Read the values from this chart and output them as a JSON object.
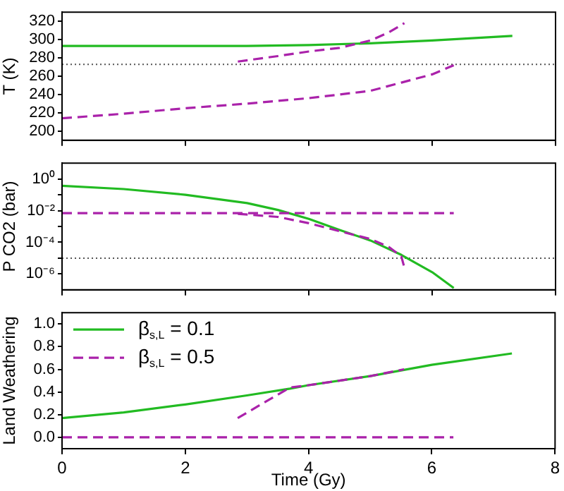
{
  "chart_data": [
    {
      "type": "line",
      "ylabel": "T (K)",
      "xlim": [
        0,
        8
      ],
      "xticks": [
        0,
        2,
        4,
        6,
        8
      ],
      "ylim": [
        190,
        330
      ],
      "yticks": [
        200,
        220,
        240,
        260,
        280,
        300,
        320
      ],
      "tick_labels": "y",
      "line_style": "dashed",
      "ref_lines": [
        {
          "axis": "y",
          "value": 273,
          "color": "#555555",
          "line_style": "dotted"
        }
      ],
      "series": [
        {
          "color": "#22bb22",
          "line_style": "solid",
          "x": [
            0,
            1,
            2,
            3,
            4,
            5,
            6,
            7.3
          ],
          "values": [
            293,
            293,
            293,
            293,
            294,
            296,
            299,
            304
          ]
        },
        {
          "color": "#aa22aa",
          "x": [
            0,
            1,
            2,
            3,
            4,
            5,
            5.5,
            6,
            6.35
          ],
          "values": [
            214,
            219,
            225,
            230,
            236,
            244,
            253,
            262,
            272
          ]
        },
        {
          "color": "#aa22aa",
          "x": [
            2.85,
            3.5,
            4,
            4.5,
            5,
            5.3,
            5.55
          ],
          "values": [
            276,
            282,
            287,
            291,
            299,
            308,
            318
          ]
        }
      ]
    },
    {
      "type": "line",
      "ylabel": "P CO2 (bar)",
      "xlim": [
        0,
        8
      ],
      "xticks": [
        0,
        2,
        4,
        6,
        8
      ],
      "ylim": [
        1e-07,
        10
      ],
      "yticks": [
        {
          "value": 1,
          "label": "10⁰"
        },
        {
          "value": 0.1,
          "label": null
        },
        {
          "value": 0.01,
          "label": "10⁻²"
        },
        {
          "value": 0.001,
          "label": null
        },
        {
          "value": 0.0001,
          "label": "10⁻⁴"
        },
        {
          "value": 1e-05,
          "label": null
        },
        {
          "value": 1e-06,
          "label": "10⁻⁶"
        }
      ],
      "log": "y",
      "tick_labels": "y",
      "line_style": "dashed",
      "ref_lines": [
        {
          "axis": "y",
          "value": 1e-05,
          "color": "#555555",
          "line_style": "dotted"
        }
      ],
      "series": [
        {
          "color": "#22bb22",
          "line_style": "solid",
          "x": [
            0,
            1,
            2,
            3,
            3.5,
            4,
            4.5,
            5,
            5.5,
            6,
            6.35
          ],
          "values": [
            0.37,
            0.23,
            0.1,
            0.03,
            0.011,
            0.003,
            0.0006,
            0.00013,
            1.6e-05,
            1.3e-06,
            1.3e-07
          ]
        },
        {
          "color": "#aa22aa",
          "x": [
            0,
            6.35
          ],
          "values": [
            0.007,
            0.007
          ]
        },
        {
          "color": "#aa22aa",
          "x": [
            2.85,
            3.5,
            4,
            4.5,
            5,
            5.3,
            5.5,
            5.55
          ],
          "values": [
            0.0063,
            0.004,
            0.0016,
            0.0005,
            0.00016,
            5e-05,
            1.3e-05,
            2.5e-06
          ]
        }
      ]
    },
    {
      "type": "line",
      "ylabel": "Land Weathering",
      "xlabel": "Time (Gy)",
      "xlim": [
        0,
        8
      ],
      "xticks": [
        0,
        2,
        4,
        6,
        8
      ],
      "ylim": [
        -0.1,
        1.1
      ],
      "yticks": [
        {
          "value": 0,
          "label": "0.0"
        },
        {
          "value": 0.2,
          "label": "0.2"
        },
        {
          "value": 0.4,
          "label": "0.4"
        },
        {
          "value": 0.6,
          "label": "0.6"
        },
        {
          "value": 0.8,
          "label": "0.8"
        },
        {
          "value": 1,
          "label": "1.0"
        }
      ],
      "legend": "top left",
      "line_style": "dashed",
      "series": [
        {
          "name": "β$_{s,L}$ = 0.1",
          "color": "#22bb22",
          "line_style": "solid",
          "x": [
            0,
            1,
            2,
            3,
            3.7,
            4,
            5,
            6,
            7.3
          ],
          "values": [
            0.17,
            0.22,
            0.29,
            0.37,
            0.43,
            0.46,
            0.54,
            0.64,
            0.74
          ]
        },
        {
          "name": "β$_{s,L}$ = 0.5",
          "color": "#aa22aa",
          "x": [
            0,
            6.35
          ],
          "values": [
            0,
            0
          ]
        },
        {
          "color": "#aa22aa",
          "x": [
            2.85,
            3.7,
            4,
            4.5,
            5,
            5.55
          ],
          "values": [
            0.17,
            0.44,
            0.46,
            0.5,
            0.54,
            0.6
          ]
        }
      ]
    }
  ]
}
